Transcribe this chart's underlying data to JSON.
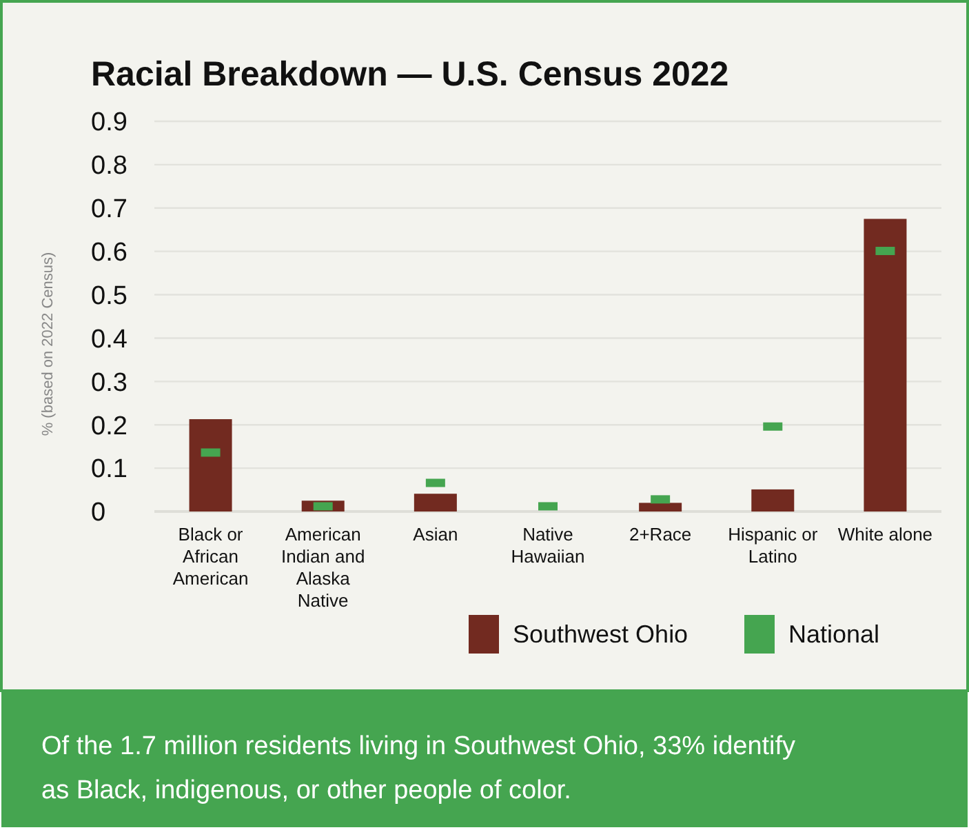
{
  "chart_data": {
    "type": "bar",
    "title": "Racial Breakdown — U.S. Census 2022",
    "ylabel": "% (based on 2022 Census)",
    "categories": [
      "Black or African American",
      "American Indian and Alaska Native",
      "Asian",
      "Native Hawaiian",
      "2+Race",
      "Hispanic or Latino",
      "White alone"
    ],
    "series": [
      {
        "name": "Southwest Ohio",
        "color": "#722a20",
        "values": [
          0.213,
          0.025,
          0.041,
          null,
          0.02,
          0.051,
          0.675
        ]
      },
      {
        "name": "National",
        "type": "scatter",
        "marker": "square",
        "color": "#45a550",
        "values": [
          0.136,
          0.012,
          0.066,
          0.012,
          0.028,
          0.196,
          0.601
        ]
      }
    ],
    "ylim": [
      0,
      0.9
    ],
    "yticks": [
      0,
      0.1,
      0.2,
      0.3,
      0.4,
      0.5,
      0.6,
      0.7,
      0.8,
      0.9
    ],
    "grid": "y",
    "legend": "bottom right",
    "annotations": [
      "Of the 1.7 million residents living in Southwest Ohio, 33% identify as Black, indigenous, or other people of color."
    ]
  }
}
